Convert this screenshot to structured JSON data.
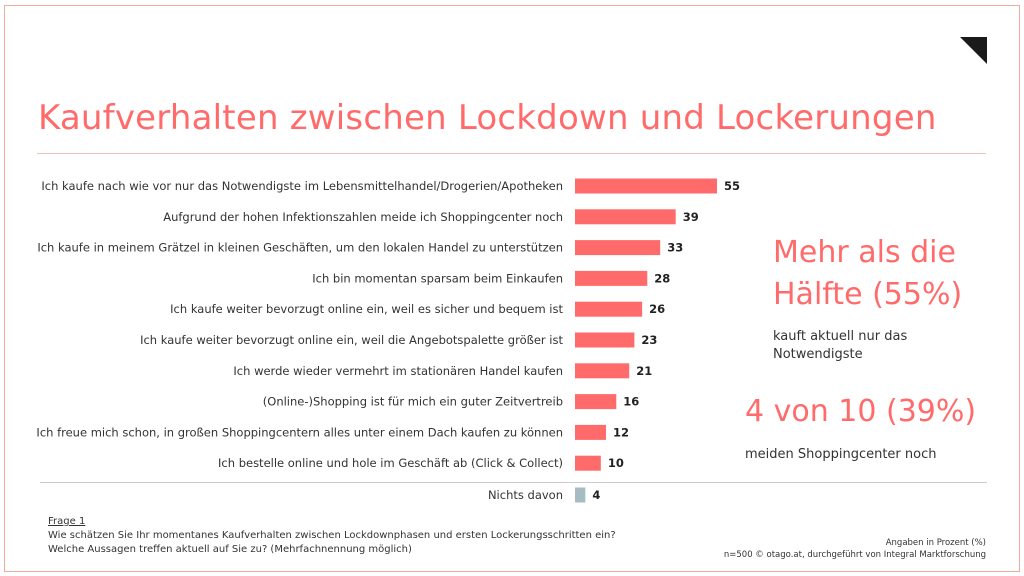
{
  "title": "Kaufverhalten zwischen Lockdown und Lockerungen",
  "colors": {
    "accent": "#ff6b6b",
    "bar": "#ff6b6b",
    "bar_muted": "#a7bcc2"
  },
  "chart_data": {
    "type": "bar",
    "orientation": "horizontal",
    "categories": [
      "Ich kaufe nach wie vor nur das Notwendigste im Lebensmittelhandel/Drogerien/Apotheken",
      "Aufgrund der hohen Infektionszahlen meide ich Shoppingcenter noch",
      "Ich kaufe in meinem Grätzel in kleinen Geschäften, um den lokalen Handel zu unterstützen",
      "Ich bin momentan sparsam beim Einkaufen",
      "Ich kaufe weiter bevorzugt online ein, weil es sicher und bequem ist",
      "Ich kaufe weiter bevorzugt online ein, weil die Angebotspalette größer ist",
      "Ich werde wieder vermehrt im stationären Handel kaufen",
      "(Online-)Shopping ist für mich ein guter Zeitvertreib",
      "Ich freue mich schon, in großen Shoppingcentern alles unter einem Dach kaufen zu können",
      "Ich bestelle online und hole im Geschäft ab (Click & Collect)",
      "Nichts davon"
    ],
    "values": [
      55,
      39,
      33,
      28,
      26,
      23,
      21,
      16,
      12,
      10,
      4
    ],
    "bar_colors": [
      "#ff6b6b",
      "#ff6b6b",
      "#ff6b6b",
      "#ff6b6b",
      "#ff6b6b",
      "#ff6b6b",
      "#ff6b6b",
      "#ff6b6b",
      "#ff6b6b",
      "#ff6b6b",
      "#a7bcc2"
    ],
    "xlim": [
      0,
      55
    ],
    "unit": "%",
    "grid": false
  },
  "callouts": [
    {
      "headline": "Mehr als die Hälfte (55%)",
      "headline_line1": "Mehr als die",
      "headline_line2": "Hälfte (55%)",
      "description": "kauft aktuell nur das Notwendigste"
    },
    {
      "headline": "4 von 10 (39%)",
      "description": "meiden Shoppingcenter noch"
    }
  ],
  "question": {
    "label": "Frage 1",
    "line1": "Wie schätzen Sie Ihr momentanes Kaufverhalten zwischen Lockdownphasen und ersten Lockerungsschritten ein?",
    "line2": "Welche Aussagen treffen aktuell auf Sie zu? (Mehrfachnennung möglich)"
  },
  "footnote": {
    "line1": "Angaben in Prozent (%)",
    "line2": "n=500 © otago.at, durchgeführt von Integral Marktforschung"
  }
}
